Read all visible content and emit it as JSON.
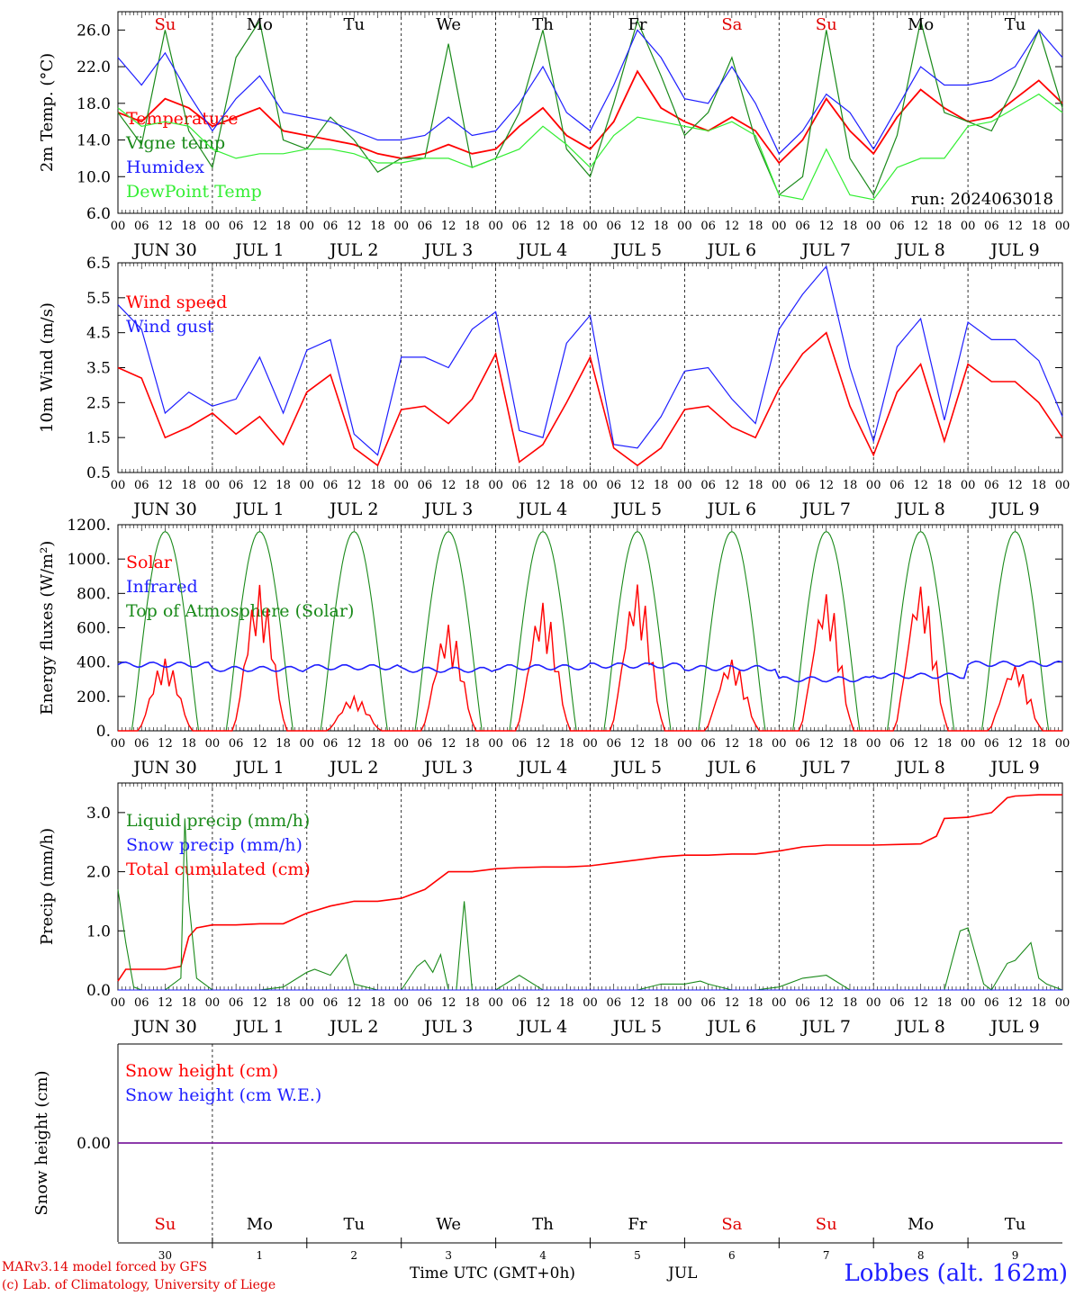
{
  "run_label": "run: 2024063018",
  "hour_ticks": [
    "00",
    "06",
    "12",
    "18"
  ],
  "dates": [
    "JUN 30",
    "JUL  1",
    "JUL  2",
    "JUL  3",
    "JUL  4",
    "JUL  5",
    "JUL  6",
    "JUL  7",
    "JUL  8",
    "JUL  9"
  ],
  "weekdays": [
    "Su",
    "Mo",
    "Tu",
    "We",
    "Th",
    "Fr",
    "Sa",
    "Su",
    "Mo",
    "Tu"
  ],
  "weekday_colors": [
    "#e00000",
    "#000000",
    "#000000",
    "#000000",
    "#000000",
    "#000000",
    "#e00000",
    "#e00000",
    "#000000",
    "#000000"
  ],
  "day_numbers": [
    "30",
    "1",
    "2",
    "3",
    "4",
    "5",
    "6",
    "7",
    "8",
    "9"
  ],
  "footer": {
    "model": "MARv3.14 model forced by GFS",
    "copyright": "(c) Lab. of Climatology, University of Liege",
    "time_label": "Time UTC (GMT+0h)",
    "month": "JUL",
    "station": "Lobbes (alt. 162m)"
  },
  "colors": {
    "red": "#ff0000",
    "green": "#1a8a1a",
    "blue": "#1f1fff",
    "lime": "#33ee33",
    "purple": "#7a1f9f"
  },
  "chart_data": [
    {
      "type": "line",
      "ylabel": "2m Temp. (°C)",
      "ylim": [
        6,
        28
      ],
      "yticks": [
        "6.0",
        "10.0",
        "14.0",
        "18.0",
        "22.0",
        "26.0"
      ],
      "ytick_values": [
        6,
        10,
        14,
        18,
        22,
        26
      ],
      "x_hours": [
        0,
        240
      ],
      "legend": [
        "Temperature",
        "Vigne temp",
        "Humidex",
        "DewPoint Temp"
      ],
      "series": [
        {
          "name": "Temperature",
          "color": "red",
          "x": [
            0,
            6,
            12,
            18,
            24,
            30,
            36,
            42,
            48,
            54,
            60,
            66,
            72,
            78,
            84,
            90,
            96,
            102,
            108,
            114,
            120,
            126,
            132,
            138,
            144,
            150,
            156,
            162,
            168,
            174,
            180,
            186,
            192,
            198,
            204,
            210,
            216,
            222,
            228,
            234,
            240
          ],
          "values": [
            17,
            16,
            18.5,
            17.5,
            15.5,
            16.5,
            17.5,
            15,
            14.5,
            14,
            13.5,
            12.5,
            12,
            12.5,
            13.5,
            12.5,
            13,
            15.5,
            17.5,
            14.5,
            13,
            16,
            21.5,
            17.5,
            16,
            15,
            16.5,
            15,
            11.5,
            14,
            18.5,
            15,
            12.5,
            16.5,
            19.5,
            17.5,
            16,
            16.5,
            18.5,
            20.5,
            18
          ]
        },
        {
          "name": "Vigne temp",
          "color": "green",
          "x": [
            0,
            6,
            12,
            18,
            24,
            30,
            36,
            42,
            48,
            54,
            60,
            66,
            72,
            78,
            84,
            90,
            96,
            102,
            108,
            114,
            120,
            126,
            132,
            138,
            144,
            150,
            156,
            162,
            168,
            174,
            180,
            186,
            192,
            198,
            204,
            210,
            216,
            222,
            228,
            234,
            240
          ],
          "values": [
            17,
            13.5,
            26,
            15,
            11,
            23,
            27,
            14,
            13,
            16.5,
            14,
            10.5,
            12,
            12,
            24.5,
            11,
            12,
            17,
            26,
            13,
            10,
            18,
            27,
            21,
            14.5,
            17,
            23,
            14,
            8,
            10,
            26,
            12,
            8,
            14.5,
            27,
            17,
            16,
            15,
            20,
            26,
            17.5
          ]
        },
        {
          "name": "Humidex",
          "color": "blue",
          "x": [
            0,
            6,
            12,
            18,
            24,
            30,
            36,
            42,
            48,
            54,
            60,
            66,
            72,
            78,
            84,
            90,
            96,
            102,
            108,
            114,
            120,
            126,
            132,
            138,
            144,
            150,
            156,
            162,
            168,
            174,
            180,
            186,
            192,
            198,
            204,
            210,
            216,
            222,
            228,
            234,
            240
          ],
          "values": [
            23,
            20,
            23.5,
            19,
            15,
            18.5,
            21,
            17,
            16.5,
            16,
            15,
            14,
            14,
            14.5,
            16.5,
            14.5,
            15,
            18,
            22,
            17,
            15,
            20,
            26,
            23,
            18.5,
            18,
            22,
            18,
            12.5,
            15,
            19,
            17,
            13,
            17.5,
            22,
            20,
            20,
            20.5,
            22,
            26,
            23
          ]
        },
        {
          "name": "DewPoint Temp",
          "color": "lime",
          "x": [
            0,
            6,
            12,
            18,
            24,
            30,
            36,
            42,
            48,
            54,
            60,
            66,
            72,
            78,
            84,
            90,
            96,
            102,
            108,
            114,
            120,
            126,
            132,
            138,
            144,
            150,
            156,
            162,
            168,
            174,
            180,
            186,
            192,
            198,
            204,
            210,
            216,
            222,
            228,
            234,
            240
          ],
          "values": [
            17.5,
            15.5,
            16,
            15.5,
            13,
            12,
            12.5,
            12.5,
            13,
            13,
            12.5,
            11.5,
            11.5,
            12,
            12,
            11,
            12,
            13,
            15.5,
            13.5,
            11,
            14.5,
            16.5,
            16,
            15.5,
            15,
            16,
            14.5,
            8,
            7.5,
            13,
            8,
            7.5,
            11,
            12,
            12,
            15.5,
            16,
            17.5,
            19,
            17
          ]
        }
      ]
    },
    {
      "type": "line",
      "ylabel": "10m Wind (m/s)",
      "ylim": [
        0.5,
        6.5
      ],
      "yticks": [
        "0.5",
        "1.5",
        "2.5",
        "3.5",
        "4.5",
        "5.5",
        "6.5"
      ],
      "ytick_values": [
        0.5,
        1.5,
        2.5,
        3.5,
        4.5,
        5.5,
        6.5
      ],
      "ref_line": 5,
      "legend": [
        "Wind speed",
        "Wind gust"
      ],
      "series": [
        {
          "name": "Wind speed",
          "color": "red",
          "x": [
            0,
            6,
            12,
            18,
            24,
            30,
            36,
            42,
            48,
            54,
            60,
            66,
            72,
            78,
            84,
            90,
            96,
            102,
            108,
            114,
            120,
            126,
            132,
            138,
            144,
            150,
            156,
            162,
            168,
            174,
            180,
            186,
            192,
            198,
            204,
            210,
            216,
            222,
            228,
            234,
            240
          ],
          "values": [
            3.5,
            3.2,
            1.5,
            1.8,
            2.2,
            1.6,
            2.1,
            1.3,
            2.8,
            3.3,
            1.2,
            0.7,
            2.3,
            2.4,
            1.9,
            2.6,
            3.9,
            0.8,
            1.3,
            2.5,
            3.8,
            1.2,
            0.7,
            1.2,
            2.3,
            2.4,
            1.8,
            1.5,
            2.9,
            3.9,
            4.5,
            2.4,
            1.0,
            2.8,
            3.6,
            1.4,
            3.6,
            3.1,
            3.1,
            2.5,
            1.5
          ]
        },
        {
          "name": "Wind gust",
          "color": "blue",
          "x": [
            0,
            6,
            12,
            18,
            24,
            30,
            36,
            42,
            48,
            54,
            60,
            66,
            72,
            78,
            84,
            90,
            96,
            102,
            108,
            114,
            120,
            126,
            132,
            138,
            144,
            150,
            156,
            162,
            168,
            174,
            180,
            186,
            192,
            198,
            204,
            210,
            216,
            222,
            228,
            234,
            240
          ],
          "values": [
            5.3,
            4.6,
            2.2,
            2.8,
            2.4,
            2.6,
            3.8,
            2.2,
            4.0,
            4.3,
            1.6,
            1.0,
            3.8,
            3.8,
            3.5,
            4.6,
            5.1,
            1.7,
            1.5,
            4.2,
            5.0,
            1.3,
            1.2,
            2.1,
            3.4,
            3.5,
            2.6,
            1.9,
            4.6,
            5.6,
            6.4,
            3.5,
            1.4,
            4.1,
            4.9,
            2.0,
            4.8,
            4.3,
            4.3,
            3.7,
            2.1
          ]
        }
      ]
    },
    {
      "type": "line",
      "ylabel": "Energy fluxes (W/m²)",
      "ylim": [
        0,
        1200
      ],
      "yticks": [
        "0.",
        "200.",
        "400.",
        "600.",
        "800.",
        "1000.",
        "1200."
      ],
      "ytick_values": [
        0,
        200,
        400,
        600,
        800,
        1000,
        1200
      ],
      "legend": [
        "Solar",
        "Infrared",
        "Top of Atmosphere (Solar)"
      ],
      "toa_peak": 1160,
      "solar_daily_peaks": [
        420,
        850,
        200,
        620,
        750,
        860,
        420,
        810,
        860,
        390
      ],
      "infrared_daily": [
        385,
        360,
        370,
        355,
        370,
        380,
        365,
        300,
        320,
        390
      ],
      "series": [
        {
          "name": "Solar",
          "color": "red"
        },
        {
          "name": "Infrared",
          "color": "blue"
        },
        {
          "name": "Top of Atmosphere (Solar)",
          "color": "green"
        }
      ]
    },
    {
      "type": "line",
      "ylabel": "Precip (mm/h)",
      "ylim": [
        0,
        3.5
      ],
      "yticks": [
        "0.0",
        "1.0",
        "2.0",
        "3.0"
      ],
      "ytick_values": [
        0,
        1,
        2,
        3
      ],
      "legend": [
        "Liquid precip (mm/h)",
        "Snow precip (mm/h)",
        "Total cumulated (cm)"
      ],
      "series": [
        {
          "name": "Total cumulated (cm)",
          "color": "red",
          "x": [
            0,
            2,
            6,
            12,
            16,
            18,
            20,
            24,
            30,
            36,
            42,
            48,
            54,
            60,
            66,
            72,
            78,
            84,
            90,
            96,
            102,
            108,
            114,
            120,
            126,
            132,
            138,
            144,
            150,
            156,
            162,
            168,
            174,
            180,
            186,
            192,
            198,
            204,
            208,
            210,
            216,
            222,
            226,
            228,
            234,
            240
          ],
          "values": [
            0.15,
            0.35,
            0.35,
            0.35,
            0.4,
            0.9,
            1.05,
            1.1,
            1.1,
            1.12,
            1.12,
            1.3,
            1.42,
            1.5,
            1.5,
            1.55,
            1.7,
            2.0,
            2.0,
            2.05,
            2.07,
            2.08,
            2.08,
            2.1,
            2.15,
            2.2,
            2.25,
            2.28,
            2.28,
            2.3,
            2.3,
            2.35,
            2.42,
            2.45,
            2.45,
            2.45,
            2.46,
            2.47,
            2.6,
            2.9,
            2.92,
            3.0,
            3.25,
            3.28,
            3.3,
            3.3
          ]
        },
        {
          "name": "Liquid precip (mm/h)",
          "color": "green",
          "x": [
            0,
            2,
            4,
            6,
            12,
            16,
            17,
            18,
            20,
            24,
            30,
            36,
            42,
            48,
            50,
            54,
            58,
            60,
            66,
            72,
            76,
            78,
            80,
            82,
            84,
            86,
            88,
            90,
            96,
            102,
            108,
            114,
            120,
            126,
            132,
            138,
            144,
            148,
            150,
            156,
            162,
            168,
            174,
            180,
            186,
            192,
            198,
            204,
            210,
            212,
            214,
            216,
            220,
            222,
            226,
            228,
            232,
            234,
            236,
            240
          ],
          "values": [
            1.7,
            0.8,
            0.05,
            0,
            0,
            0.2,
            2.9,
            1.5,
            0.2,
            0,
            0,
            0,
            0.05,
            0.3,
            0.35,
            0.25,
            0.6,
            0.1,
            0,
            0,
            0.4,
            0.5,
            0.3,
            0.6,
            0,
            0,
            1.5,
            0,
            0,
            0.25,
            0,
            0,
            0,
            0,
            0,
            0.1,
            0.1,
            0.15,
            0.1,
            0,
            0,
            0.05,
            0.2,
            0.25,
            0,
            0,
            0,
            0,
            0,
            0.5,
            1.0,
            1.05,
            0.1,
            0,
            0.45,
            0.5,
            0.8,
            0.2,
            0.1,
            0
          ]
        },
        {
          "name": "Snow precip (mm/h)",
          "color": "blue",
          "x": [
            0,
            240
          ],
          "values": [
            0,
            0
          ]
        }
      ]
    },
    {
      "type": "line",
      "ylabel": "Snow height (cm)",
      "ylim": [
        -1,
        1
      ],
      "yticks": [
        "0.00"
      ],
      "ytick_values": [
        0
      ],
      "legend": [
        "Snow height (cm)",
        "Snow height (cm W.E.)"
      ],
      "series": [
        {
          "name": "Snow height (cm)",
          "color": "red",
          "x": [
            0,
            240
          ],
          "values": [
            0,
            0
          ]
        },
        {
          "name": "Snow height (cm W.E.)",
          "color": "blue",
          "x": [
            0,
            240
          ],
          "values": [
            0,
            0
          ]
        }
      ]
    }
  ]
}
